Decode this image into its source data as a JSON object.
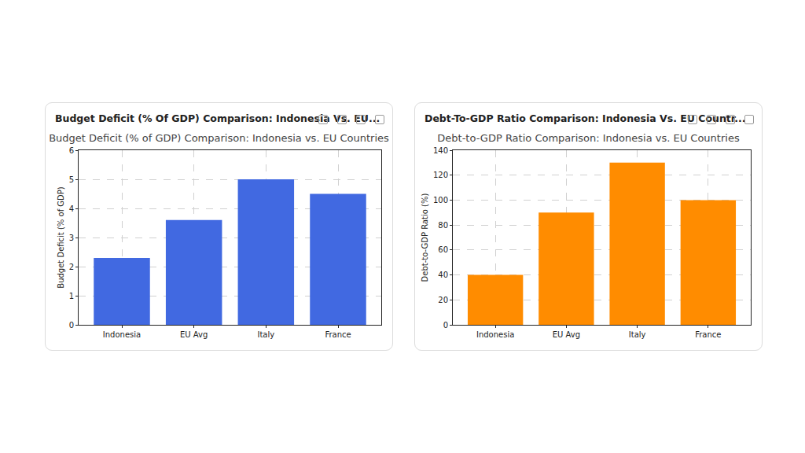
{
  "cards": [
    {
      "header": "Budget Deficit (% Of GDP) Comparison: Indonesia Vs. EU..."
    },
    {
      "header": "Debt-To-GDP Ratio Comparison: Indonesia Vs. EU Countr..."
    }
  ],
  "chart_data": [
    {
      "type": "bar",
      "title": "Budget Deficit (% of GDP) Comparison: Indonesia vs. EU Countries",
      "y_label": "Budget Deficit (% of GDP)",
      "categories": [
        "Indonesia",
        "EU Avg",
        "Italy",
        "France"
      ],
      "values": [
        2.3,
        3.6,
        5.0,
        4.5
      ],
      "color": "#4169e1",
      "ylim": [
        0,
        6
      ],
      "yticks": [
        0,
        1,
        2,
        3,
        4,
        5,
        6
      ],
      "grid": true
    },
    {
      "type": "bar",
      "title": "Debt-to-GDP Ratio Comparison: Indonesia vs. EU Countries",
      "y_label": "Debt-to-GDP Ratio (%)",
      "categories": [
        "Indonesia",
        "EU Avg",
        "Italy",
        "France"
      ],
      "values": [
        40,
        90,
        130,
        100
      ],
      "color": "#ff8c00",
      "ylim": [
        0,
        140
      ],
      "yticks": [
        0,
        20,
        40,
        60,
        80,
        100,
        120,
        140
      ],
      "grid": true
    }
  ]
}
